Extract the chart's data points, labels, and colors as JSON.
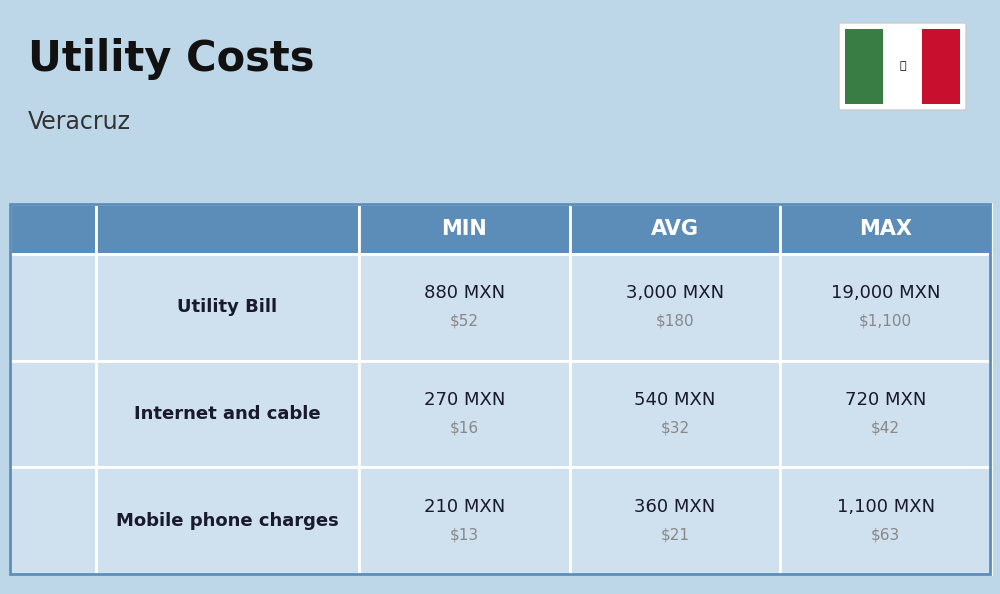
{
  "title": "Utility Costs",
  "subtitle": "Veracruz",
  "background_color": "#bdd7e9",
  "header_color": "#5b8db8",
  "header_text_color": "#ffffff",
  "row_color": "#cfe0ee",
  "col_headers": [
    "MIN",
    "AVG",
    "MAX"
  ],
  "rows": [
    {
      "label": "Utility Bill",
      "min_mxn": "880 MXN",
      "min_usd": "$52",
      "avg_mxn": "3,000 MXN",
      "avg_usd": "$180",
      "max_mxn": "19,000 MXN",
      "max_usd": "$1,100"
    },
    {
      "label": "Internet and cable",
      "min_mxn": "270 MXN",
      "min_usd": "$16",
      "avg_mxn": "540 MXN",
      "avg_usd": "$32",
      "max_mxn": "720 MXN",
      "max_usd": "$42"
    },
    {
      "label": "Mobile phone charges",
      "min_mxn": "210 MXN",
      "min_usd": "$13",
      "avg_mxn": "360 MXN",
      "avg_usd": "$21",
      "max_mxn": "1,100 MXN",
      "max_usd": "$63"
    }
  ],
  "mxn_text_color": "#1a1a2e",
  "usd_text_color": "#888888",
  "label_text_color": "#1a1a2e",
  "title_color": "#111111",
  "subtitle_color": "#333333",
  "flag_green": "#3a7d44",
  "flag_white": "#ffffff",
  "flag_red": "#c8102e",
  "divider_color": "#ffffff",
  "table_border_color": "#5b8db8"
}
